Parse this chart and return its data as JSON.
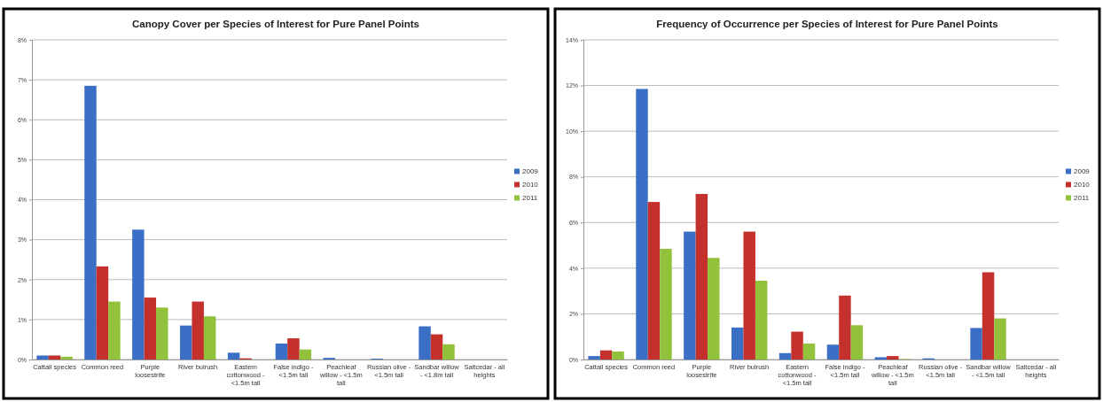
{
  "chart_data": [
    {
      "type": "bar",
      "title": "Canopy Cover per Species of Interest for Pure Panel Points",
      "categories": [
        "Cattail species",
        "Common reed",
        "Purple loosestrife",
        "River bulrush",
        "Eastern cottonwood - <1.5m tall",
        "False indigo - <1.5m tall",
        "Peachleaf willow - <1.5m tall",
        "Russian olive - <1.5m tall",
        "Sandbar willow - <1.8m tall",
        "Saltcedar - all heights"
      ],
      "series": [
        {
          "name": "2009",
          "color": "#3b6fc6",
          "values": [
            0.1,
            6.85,
            3.25,
            0.85,
            0.17,
            0.4,
            0.04,
            0.02,
            0.83,
            0
          ]
        },
        {
          "name": "2010",
          "color": "#c4302c",
          "values": [
            0.1,
            2.33,
            1.55,
            1.45,
            0.03,
            0.53,
            0,
            0,
            0.63,
            0
          ]
        },
        {
          "name": "2011",
          "color": "#92c13c",
          "values": [
            0.07,
            1.45,
            1.3,
            1.08,
            0,
            0.25,
            0,
            0,
            0.38,
            0
          ]
        }
      ],
      "ylim": [
        0,
        8
      ],
      "yticks": [
        {
          "value": 0,
          "label": "0%"
        },
        {
          "value": 1,
          "label": "1%"
        },
        {
          "value": 2,
          "label": "2%"
        },
        {
          "value": 3,
          "label": "3%"
        },
        {
          "value": 4,
          "label": "4%"
        },
        {
          "value": 5,
          "label": "5%"
        },
        {
          "value": 6,
          "label": "6%"
        },
        {
          "value": 7,
          "label": "7%"
        },
        {
          "value": 8,
          "label": "8%"
        }
      ],
      "grid": "y",
      "legend": "right"
    },
    {
      "type": "bar",
      "title": "Frequency of Occurrence per Species of Interest for Pure Panel Points",
      "categories": [
        "Cattail species",
        "Common reed",
        "Purple loosestrife",
        "River bulrush",
        "Eastern cottonwood - <1.5m tall",
        "False indigo - <1.5m tall",
        "Peachleaf willow - <1.5m tall",
        "Russian olive - <1.5m tall",
        "Sandbar willow - <1.5m tall",
        "Saltcedar - all heights"
      ],
      "series": [
        {
          "name": "2009",
          "color": "#3b6fc6",
          "values": [
            0.15,
            11.85,
            5.6,
            1.4,
            0.28,
            0.65,
            0.1,
            0.05,
            1.38,
            0
          ]
        },
        {
          "name": "2010",
          "color": "#c4302c",
          "values": [
            0.4,
            6.9,
            7.25,
            5.6,
            1.22,
            2.8,
            0.15,
            0,
            3.82,
            0
          ]
        },
        {
          "name": "2011",
          "color": "#92c13c",
          "values": [
            0.35,
            4.85,
            4.45,
            3.45,
            0.7,
            1.5,
            0.02,
            0,
            1.8,
            0
          ]
        }
      ],
      "ylim": [
        0,
        14
      ],
      "yticks": [
        {
          "value": 0,
          "label": "0%"
        },
        {
          "value": 2,
          "label": "2%"
        },
        {
          "value": 4,
          "label": "4%"
        },
        {
          "value": 6,
          "label": "6%"
        },
        {
          "value": 8,
          "label": "8%"
        },
        {
          "value": 10,
          "label": "10%"
        },
        {
          "value": 12,
          "label": "12%"
        },
        {
          "value": 14,
          "label": "14%"
        }
      ],
      "grid": "y",
      "legend": "right"
    }
  ]
}
